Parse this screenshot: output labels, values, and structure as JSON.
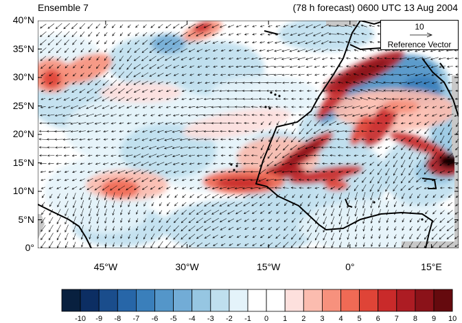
{
  "header": {
    "left_title": "Ensemble 7",
    "right_title": "(78 h forecast) 0600 UTC 13 Aug 2004"
  },
  "axes": {
    "y_labels": [
      "40°N",
      "35°N",
      "30°N",
      "25°N",
      "20°N",
      "15°N",
      "10°N",
      "5°N",
      "0°"
    ],
    "x_labels": [
      "45°W",
      "30°W",
      "15°W",
      "0°",
      "15°E"
    ],
    "lat_range": [
      0,
      40
    ],
    "lon_range": [
      -57.5,
      20
    ]
  },
  "reference_vector": {
    "magnitude": "10",
    "label": "Reference Vector"
  },
  "colorbar": {
    "labels": [
      "-10",
      "-9",
      "-8",
      "-7",
      "-6",
      "-5",
      "-4",
      "-3",
      "-2",
      "-1",
      "0",
      "1",
      "2",
      "3",
      "4",
      "5",
      "6",
      "7",
      "8",
      "9",
      "10"
    ],
    "colors": [
      "#08203f",
      "#0c2e63",
      "#1a4d8c",
      "#2766a8",
      "#3a7fbb",
      "#5496c9",
      "#72acd6",
      "#96c6e2",
      "#bfdfee",
      "#e4f3fa",
      "#ffffff",
      "#ffffff",
      "#fde0dd",
      "#fbbcaf",
      "#f7917d",
      "#f06a55",
      "#df4437",
      "#c92a2a",
      "#ad1c23",
      "#8b1219",
      "#650a0e"
    ]
  },
  "colors": {
    "land_missing": "#c8c8c8",
    "coastline": "#000000",
    "vector": "#000000"
  }
}
